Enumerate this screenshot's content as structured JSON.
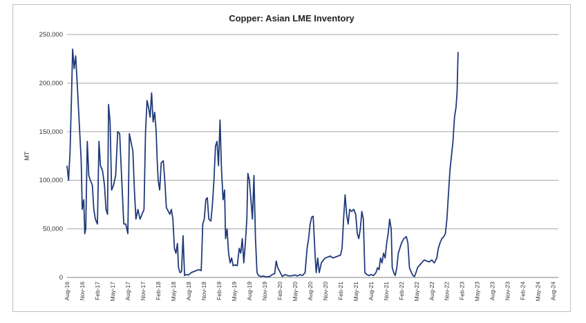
{
  "chart_data": {
    "type": "line",
    "title": "Copper: Asian LME Inventory",
    "xlabel": "",
    "ylabel": "MT",
    "ylim": [
      0,
      250000
    ],
    "yticks": [
      0,
      50000,
      100000,
      150000,
      200000,
      250000
    ],
    "ytick_labels": [
      "0",
      "50,000",
      "100,000",
      "150,000",
      "200,000",
      "250,000"
    ],
    "xlim": [
      0,
      97
    ],
    "x_tick_labels": [
      "Aug-16",
      "Nov-16",
      "Feb-17",
      "May-17",
      "Aug-17",
      "Nov-17",
      "Feb-18",
      "May-18",
      "Aug-18",
      "Nov-18",
      "Feb-19",
      "May-19",
      "Aug-19",
      "Nov-19",
      "Feb-20",
      "May-20",
      "Aug-20",
      "Nov-20",
      "Feb-21",
      "May-21",
      "Aug-21",
      "Nov-21",
      "Feb-22",
      "May-22",
      "Aug-22",
      "Nov-22",
      "Feb-23",
      "May-23",
      "Aug-23",
      "Nov-23",
      "Feb-24",
      "May-24",
      "Aug-24"
    ],
    "grid": "horizontal",
    "line_color": "#1f3a7a",
    "series": [
      {
        "name": "",
        "points": [
          [
            0,
            115000
          ],
          [
            0.3,
            100000
          ],
          [
            0.6,
            130000
          ],
          [
            0.9,
            190000
          ],
          [
            1.1,
            235000
          ],
          [
            1.4,
            215000
          ],
          [
            1.7,
            228000
          ],
          [
            2.0,
            200000
          ],
          [
            2.4,
            160000
          ],
          [
            2.8,
            120000
          ],
          [
            3.0,
            70000
          ],
          [
            3.3,
            80000
          ],
          [
            3.5,
            45000
          ],
          [
            3.7,
            50000
          ],
          [
            4.0,
            140000
          ],
          [
            4.3,
            105000
          ],
          [
            4.6,
            100000
          ],
          [
            5.0,
            95000
          ],
          [
            5.3,
            70000
          ],
          [
            5.6,
            60000
          ],
          [
            6.0,
            55000
          ],
          [
            6.3,
            140000
          ],
          [
            6.6,
            115000
          ],
          [
            7.0,
            110000
          ],
          [
            7.4,
            95000
          ],
          [
            7.7,
            70000
          ],
          [
            8.0,
            65000
          ],
          [
            8.2,
            178000
          ],
          [
            8.5,
            160000
          ],
          [
            8.8,
            90000
          ],
          [
            9.2,
            95000
          ],
          [
            9.6,
            105000
          ],
          [
            10.0,
            150000
          ],
          [
            10.4,
            148000
          ],
          [
            10.8,
            100000
          ],
          [
            11.2,
            55000
          ],
          [
            11.6,
            55000
          ],
          [
            12.0,
            45000
          ],
          [
            12.3,
            148000
          ],
          [
            12.6,
            140000
          ],
          [
            13.0,
            130000
          ],
          [
            13.3,
            90000
          ],
          [
            13.6,
            60000
          ],
          [
            14.0,
            70000
          ],
          [
            14.4,
            60000
          ],
          [
            14.8,
            65000
          ],
          [
            15.2,
            70000
          ],
          [
            15.5,
            150000
          ],
          [
            15.8,
            182000
          ],
          [
            16.1,
            175000
          ],
          [
            16.4,
            165000
          ],
          [
            16.7,
            190000
          ],
          [
            17.0,
            160000
          ],
          [
            17.3,
            170000
          ],
          [
            17.6,
            150000
          ],
          [
            17.8,
            120000
          ],
          [
            18.0,
            100000
          ],
          [
            18.3,
            90000
          ],
          [
            18.6,
            118000
          ],
          [
            19.0,
            120000
          ],
          [
            19.3,
            100000
          ],
          [
            19.6,
            72000
          ],
          [
            20.0,
            68000
          ],
          [
            20.3,
            65000
          ],
          [
            20.6,
            70000
          ],
          [
            20.9,
            60000
          ],
          [
            21.2,
            30000
          ],
          [
            21.5,
            25000
          ],
          [
            21.8,
            35000
          ],
          [
            22.0,
            10000
          ],
          [
            22.3,
            5000
          ],
          [
            22.6,
            6000
          ],
          [
            22.9,
            43000
          ],
          [
            23.2,
            2000
          ],
          [
            23.5,
            3000
          ],
          [
            24.0,
            2500
          ],
          [
            24.5,
            5000
          ],
          [
            25.0,
            6000
          ],
          [
            25.5,
            7000
          ],
          [
            26.0,
            8000
          ],
          [
            26.5,
            7000
          ],
          [
            26.8,
            55000
          ],
          [
            27.1,
            60000
          ],
          [
            27.4,
            80000
          ],
          [
            27.7,
            82000
          ],
          [
            28.0,
            60000
          ],
          [
            28.4,
            58000
          ],
          [
            28.7,
            75000
          ],
          [
            29.0,
            100000
          ],
          [
            29.3,
            135000
          ],
          [
            29.6,
            140000
          ],
          [
            29.9,
            115000
          ],
          [
            30.2,
            162000
          ],
          [
            30.5,
            110000
          ],
          [
            30.8,
            80000
          ],
          [
            31.1,
            90000
          ],
          [
            31.3,
            40000
          ],
          [
            31.6,
            50000
          ],
          [
            31.9,
            25000
          ],
          [
            32.2,
            15000
          ],
          [
            32.5,
            20000
          ],
          [
            32.8,
            12000
          ],
          [
            33.2,
            13000
          ],
          [
            33.6,
            12000
          ],
          [
            34.0,
            30000
          ],
          [
            34.3,
            25000
          ],
          [
            34.6,
            40000
          ],
          [
            34.9,
            15000
          ],
          [
            35.2,
            35000
          ],
          [
            35.5,
            60000
          ],
          [
            35.7,
            107000
          ],
          [
            36.0,
            100000
          ],
          [
            36.3,
            80000
          ],
          [
            36.6,
            60000
          ],
          [
            36.9,
            105000
          ],
          [
            37.2,
            40000
          ],
          [
            37.5,
            5000
          ],
          [
            37.8,
            2000
          ],
          [
            38.3,
            1000
          ],
          [
            38.8,
            1500
          ],
          [
            39.3,
            500
          ],
          [
            40.0,
            1000
          ],
          [
            40.5,
            3000
          ],
          [
            41.0,
            4000
          ],
          [
            41.3,
            17000
          ],
          [
            41.6,
            10000
          ],
          [
            42.0,
            6000
          ],
          [
            42.5,
            1000
          ],
          [
            43.0,
            3000
          ],
          [
            43.5,
            2000
          ],
          [
            44.0,
            1500
          ],
          [
            44.5,
            2000
          ],
          [
            45.0,
            2500
          ],
          [
            45.5,
            1500
          ],
          [
            46.0,
            3000
          ],
          [
            46.5,
            2000
          ],
          [
            47.0,
            5000
          ],
          [
            47.4,
            30000
          ],
          [
            47.7,
            40000
          ],
          [
            48.0,
            55000
          ],
          [
            48.3,
            62000
          ],
          [
            48.6,
            63000
          ],
          [
            49.0,
            20000
          ],
          [
            49.2,
            5000
          ],
          [
            49.5,
            20000
          ],
          [
            49.8,
            5000
          ],
          [
            50.2,
            15000
          ],
          [
            50.6,
            18000
          ],
          [
            51.0,
            20000
          ],
          [
            51.5,
            21000
          ],
          [
            52.0,
            22000
          ],
          [
            52.5,
            20000
          ],
          [
            53.0,
            21000
          ],
          [
            53.5,
            22000
          ],
          [
            54.0,
            23000
          ],
          [
            54.3,
            30000
          ],
          [
            54.6,
            60000
          ],
          [
            54.9,
            85000
          ],
          [
            55.2,
            65000
          ],
          [
            55.5,
            55000
          ],
          [
            55.8,
            70000
          ],
          [
            56.2,
            68000
          ],
          [
            56.6,
            70000
          ],
          [
            57.0,
            65000
          ],
          [
            57.3,
            45000
          ],
          [
            57.6,
            40000
          ],
          [
            57.9,
            50000
          ],
          [
            58.2,
            68000
          ],
          [
            58.5,
            60000
          ],
          [
            58.8,
            5000
          ],
          [
            59.2,
            3000
          ],
          [
            59.6,
            2000
          ],
          [
            60.0,
            3000
          ],
          [
            60.5,
            2000
          ],
          [
            61.0,
            5000
          ],
          [
            61.3,
            10000
          ],
          [
            61.6,
            8000
          ],
          [
            61.9,
            20000
          ],
          [
            62.2,
            15000
          ],
          [
            62.5,
            25000
          ],
          [
            62.8,
            20000
          ],
          [
            63.1,
            35000
          ],
          [
            63.4,
            45000
          ],
          [
            63.7,
            60000
          ],
          [
            64.0,
            50000
          ],
          [
            64.2,
            10000
          ],
          [
            64.5,
            5000
          ],
          [
            64.8,
            2000
          ],
          [
            65.1,
            10000
          ],
          [
            65.4,
            25000
          ],
          [
            65.7,
            30000
          ],
          [
            66.0,
            35000
          ],
          [
            66.5,
            40000
          ],
          [
            67.0,
            42000
          ],
          [
            67.3,
            35000
          ],
          [
            67.6,
            10000
          ],
          [
            68.0,
            5000
          ],
          [
            68.3,
            2000
          ],
          [
            68.6,
            1000
          ],
          [
            68.9,
            5000
          ],
          [
            69.2,
            10000
          ],
          [
            69.5,
            12000
          ],
          [
            70.0,
            15000
          ],
          [
            70.5,
            18000
          ],
          [
            71.0,
            17000
          ],
          [
            71.5,
            16000
          ],
          [
            72.0,
            18000
          ],
          [
            72.5,
            15000
          ],
          [
            73.0,
            20000
          ],
          [
            73.3,
            30000
          ],
          [
            73.6,
            35000
          ],
          [
            74.0,
            40000
          ],
          [
            74.4,
            42000
          ],
          [
            74.7,
            45000
          ],
          [
            75.0,
            60000
          ],
          [
            75.3,
            85000
          ],
          [
            75.6,
            110000
          ],
          [
            75.9,
            125000
          ],
          [
            76.2,
            140000
          ],
          [
            76.5,
            165000
          ],
          [
            76.8,
            175000
          ],
          [
            77.0,
            190000
          ],
          [
            77.2,
            232000
          ]
        ]
      }
    ]
  }
}
